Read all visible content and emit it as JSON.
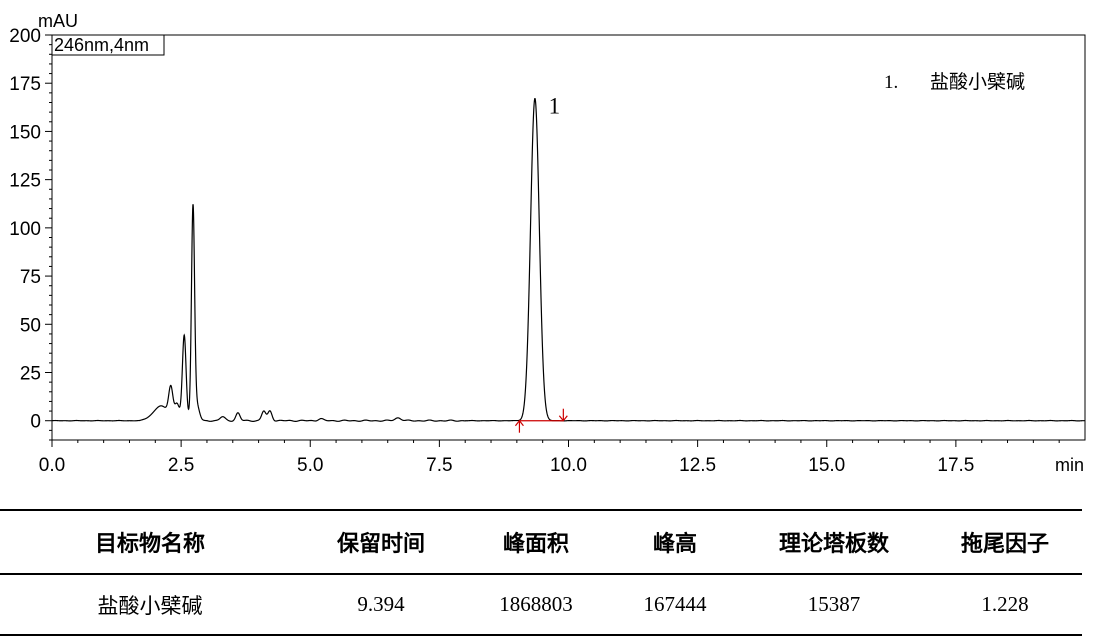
{
  "chart_data": {
    "type": "line",
    "title": "",
    "xlabel": "min",
    "ylabel": "mAU",
    "channel_label": "246nm,4nm",
    "xlim": [
      0,
      20
    ],
    "ylim": [
      -10,
      200
    ],
    "x_ticks": [
      0,
      2.5,
      5,
      7.5,
      10,
      12.5,
      15,
      17.5
    ],
    "x_tick_labels": [
      "0.0",
      "2.5",
      "5.0",
      "7.5",
      "10.0",
      "12.5",
      "15.0",
      "17.5"
    ],
    "y_ticks": [
      0,
      25,
      50,
      75,
      100,
      125,
      150,
      175,
      200
    ],
    "y_tick_labels": [
      "0",
      "25",
      "50",
      "75",
      "100",
      "125",
      "150",
      "175",
      "200"
    ],
    "peaks": [
      {
        "center": 2.1,
        "height": 5,
        "width": 0.12
      },
      {
        "center": 2.3,
        "height": 14,
        "width": 0.04
      },
      {
        "center": 2.42,
        "height": 6,
        "width": 0.04
      },
      {
        "center": 2.56,
        "height": 42,
        "width": 0.035
      },
      {
        "center": 2.73,
        "height": 108,
        "width": 0.03
      },
      {
        "center": 2.8,
        "height": 8,
        "width": 0.05
      },
      {
        "center": 3.3,
        "height": 2,
        "width": 0.05
      },
      {
        "center": 3.6,
        "height": 4,
        "width": 0.04
      },
      {
        "center": 4.1,
        "height": 5,
        "width": 0.04
      },
      {
        "center": 4.22,
        "height": 5,
        "width": 0.04
      },
      {
        "center": 5.2,
        "height": 1,
        "width": 0.05
      },
      {
        "center": 6.7,
        "height": 1.5,
        "width": 0.06
      },
      {
        "center": 9.35,
        "height": 167,
        "width": 0.085
      }
    ],
    "baseline_hump": {
      "start": 1.7,
      "end": 2.9,
      "height": 3
    },
    "baseline": {
      "x": [
        9.05,
        9.9
      ],
      "y": [
        0,
        0
      ],
      "color": "#cc0000"
    },
    "peak_label": {
      "text": "1",
      "x": 9.5,
      "y": 163
    },
    "legend_number": "1.",
    "legend_name": "盐酸小檗碱"
  },
  "table": {
    "headers": [
      "目标物名称",
      "保留时间",
      "峰面积",
      "峰高",
      "理论塔板数",
      "拖尾因子"
    ],
    "rows": [
      [
        "盐酸小檗碱",
        "9.394",
        "1868803",
        "167444",
        "15387",
        "1.228"
      ]
    ]
  }
}
